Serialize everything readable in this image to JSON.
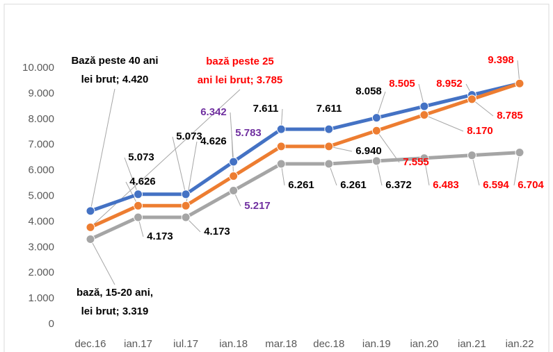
{
  "chart_data": {
    "type": "line",
    "categories": [
      "dec.16",
      "ian.17",
      "iul.17",
      "ian.18",
      "mar.18",
      "dec.18",
      "ian.19",
      "ian.20",
      "ian.21",
      "ian.22"
    ],
    "label_separator": "; ",
    "series": [
      {
        "name": "Bază peste 40 ani lei brut",
        "color": "#4472c4",
        "values": [
          4420,
          5073,
          5073,
          6342,
          7611,
          7611,
          8058,
          8505,
          8952,
          9398
        ],
        "value_labels": [
          "4.420",
          "5.073",
          "5.073",
          "6.342",
          "7.611",
          "7.611",
          "8.058",
          "8.505",
          "8.952",
          "9.398"
        ],
        "label_colors": [
          "#000000",
          "#000000",
          "#000000",
          "#7030a0",
          "#000000",
          "#000000",
          "#000000",
          "#ff0000",
          "#ff0000",
          "#ff0000"
        ]
      },
      {
        "name": "bază peste 25 ani lei brut",
        "color": "#ed7d31",
        "values": [
          3785,
          4626,
          4626,
          5783,
          6940,
          6940,
          7555,
          8170,
          8785,
          9398
        ],
        "value_labels": [
          "3.785",
          "4.626",
          "4.626",
          "5.783",
          null,
          "6.940",
          "7.555",
          "8.170",
          "8.785",
          null
        ],
        "label_colors": [
          "#ff0000",
          "#000000",
          "#000000",
          "#7030a0",
          null,
          "#000000",
          "#ff0000",
          "#ff0000",
          "#ff0000",
          null
        ]
      },
      {
        "name": "bază, 15-20 ani, lei brut",
        "color": "#a5a5a5",
        "values": [
          3319,
          4173,
          4173,
          5217,
          6261,
          6261,
          6372,
          6483,
          6594,
          6704
        ],
        "value_labels": [
          "3.319",
          "4.173",
          "4.173",
          "5.217",
          "6.261",
          "6.261",
          "6.372",
          "6.483",
          "6.594",
          "6.704"
        ],
        "label_colors": [
          "#000000",
          "#000000",
          "#000000",
          "#7030a0",
          "#000000",
          "#000000",
          "#000000",
          "#ff0000",
          "#ff0000",
          "#ff0000"
        ]
      }
    ],
    "ylim": [
      0,
      10000
    ],
    "yticks": [
      0,
      {
        "value": 1000,
        "label": "1.000"
      },
      {
        "value": 2000,
        "label": "2.000"
      },
      {
        "value": 3000,
        "label": "3.000"
      },
      {
        "value": 4000,
        "label": "4.000"
      },
      {
        "value": 5000,
        "label": "5.000"
      },
      {
        "value": 6000,
        "label": "6.000"
      },
      {
        "value": 7000,
        "label": "7.000"
      },
      {
        "value": 8000,
        "label": "8.000"
      },
      {
        "value": 9000,
        "label": "9.000"
      },
      {
        "value": 10000,
        "label": "10.000"
      }
    ],
    "grid": false
  }
}
